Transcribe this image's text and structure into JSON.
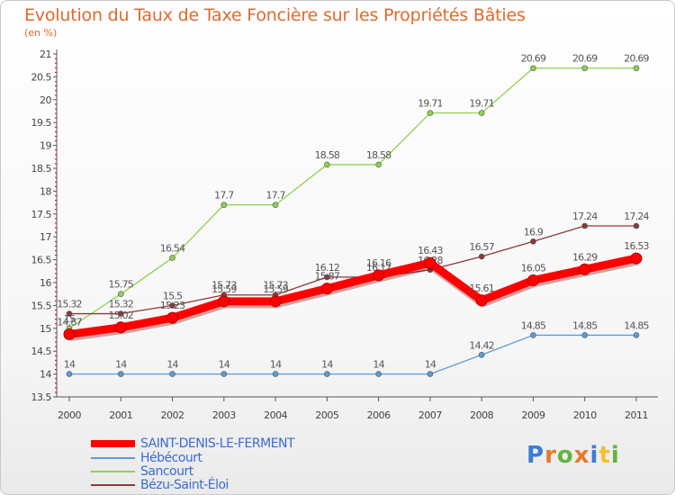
{
  "title": "Evolution du Taux de Taxe Foncière sur les Propriétés Bâties",
  "subtitle": "(en %)",
  "logo": {
    "letters": [
      "P",
      "r",
      "o",
      "x",
      "i",
      "t",
      "i"
    ],
    "colors": [
      "#3b7dd8",
      "#e8792b",
      "#62b341",
      "#e8792b",
      "#3b7dd8",
      "#f2c12e",
      "#62b341"
    ]
  },
  "chart_data": {
    "type": "line",
    "x": [
      "2000",
      "2001",
      "2002",
      "2003",
      "2004",
      "2005",
      "2006",
      "2007",
      "2008",
      "2009",
      "2010",
      "2011"
    ],
    "ylim": [
      13.5,
      21
    ],
    "yticks": [
      "13.5",
      "14",
      "14.5",
      "15",
      "15.5",
      "16",
      "16.5",
      "17",
      "17.5",
      "18",
      "18.5",
      "19",
      "19.5",
      "20",
      "20.5",
      "21"
    ],
    "grid": false,
    "legend_position": "bottom-left",
    "series": [
      {
        "name": "SAINT-DENIS-LE-FERMENT",
        "color": "#ff0000",
        "width": 9,
        "values": [
          14.87,
          15.02,
          15.23,
          15.59,
          15.59,
          15.87,
          16.16,
          16.43,
          15.61,
          16.05,
          16.29,
          16.53
        ],
        "labels": [
          "14.87",
          "15.02",
          "15.23",
          "15.59",
          "15.59",
          "15.87",
          "16.16",
          "16.43",
          "15.61",
          "16.05",
          "16.29",
          "16.53"
        ]
      },
      {
        "name": "Hébécourt",
        "color": "#5b9bd5",
        "width": 1.3,
        "values": [
          14,
          14,
          14,
          14,
          14,
          14,
          14,
          14,
          14.42,
          14.85,
          14.85,
          14.85
        ],
        "labels": [
          "14",
          "14",
          "14",
          "14",
          "14",
          "14",
          "14",
          "14",
          "14.42",
          "14.85",
          "14.85",
          "14.85"
        ]
      },
      {
        "name": "Sancourt",
        "color": "#8fd14f",
        "width": 1.3,
        "values": [
          15,
          15.75,
          16.54,
          17.7,
          17.7,
          18.58,
          18.58,
          19.71,
          19.71,
          20.69,
          20.69,
          20.69
        ],
        "labels": [
          "15",
          "15.75",
          "16.54",
          "17.7",
          "17.7",
          "18.58",
          "18.58",
          "19.71",
          "19.71",
          "20.69",
          "20.69",
          "20.69"
        ]
      },
      {
        "name": "Bézu-Saint-Éloi",
        "color": "#8b3a3a",
        "width": 1.3,
        "values": [
          15.32,
          15.32,
          15.5,
          15.73,
          15.73,
          16.12,
          16.12,
          16.28,
          16.57,
          16.9,
          17.24,
          17.24
        ],
        "labels": [
          "15.32",
          "15.32",
          "15.5",
          "15.73",
          "15.73",
          "16.12",
          "16.12",
          "16.28",
          "16.57",
          "16.9",
          "17.24",
          "17.24"
        ]
      }
    ]
  }
}
